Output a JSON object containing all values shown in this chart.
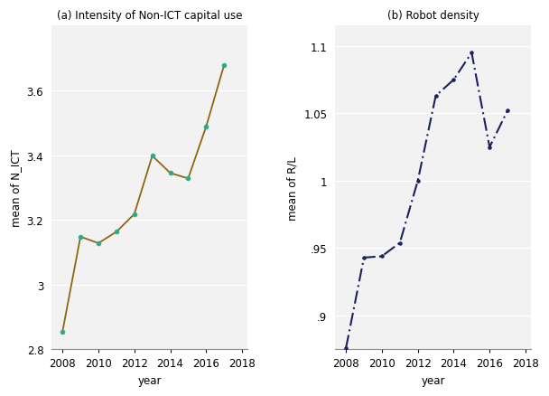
{
  "panel_a": {
    "title": "(a) Intensity of Non-ICT capital use",
    "xlabel": "year",
    "ylabel": "mean of N_ICT",
    "years": [
      2008,
      2009,
      2010,
      2011,
      2012,
      2013,
      2014,
      2015,
      2016,
      2017
    ],
    "values": [
      2.855,
      3.148,
      3.128,
      3.163,
      3.218,
      3.398,
      3.345,
      3.328,
      3.488,
      3.678
    ],
    "line_color": "#8B6812",
    "marker_color": "#2aaa8a",
    "ylim": [
      2.8,
      3.8
    ],
    "yticks": [
      2.8,
      3.0,
      3.2,
      3.4,
      3.6
    ],
    "ytick_labels": [
      "2.8",
      "3",
      "3.2",
      "3.4",
      "3.6"
    ],
    "xticks": [
      2008,
      2010,
      2012,
      2014,
      2016,
      2018
    ],
    "xlim": [
      2007.4,
      2018.3
    ]
  },
  "panel_b": {
    "title": "(b) Robot density",
    "xlabel": "year",
    "ylabel": "mean of R/L",
    "years": [
      2008,
      2009,
      2010,
      2011,
      2012,
      2013,
      2014,
      2015,
      2016,
      2017
    ],
    "values": [
      0.876,
      0.943,
      0.944,
      0.954,
      1.0,
      1.063,
      1.075,
      1.095,
      1.025,
      1.052
    ],
    "line_color": "#1c2060",
    "ylim": [
      0.875,
      1.115
    ],
    "yticks": [
      0.9,
      0.95,
      1.0,
      1.05,
      1.1
    ],
    "ytick_labels": [
      ".9",
      ".95",
      "1",
      "1.05",
      "1.1"
    ],
    "xticks": [
      2008,
      2010,
      2012,
      2014,
      2016,
      2018
    ],
    "xlim": [
      2007.4,
      2018.3
    ]
  },
  "background_color": "#ffffff",
  "plot_bg_color": "#f2f2f2",
  "grid_color": "#ffffff",
  "spine_color": "#888888",
  "font_size": 8.5
}
